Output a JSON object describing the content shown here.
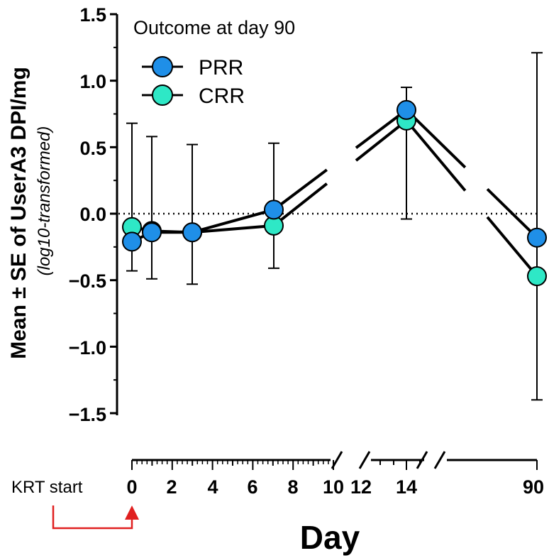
{
  "chart_data": {
    "type": "line",
    "title": "Outcome at day 90",
    "ylabel": "Mean ± SE of UserA3 DPI/mg",
    "ylabel_sub": "(log10-transformed)",
    "xlabel": "Day",
    "ylim": [
      -1.5,
      1.5
    ],
    "yticks": [
      1.5,
      1.0,
      0.5,
      0.0,
      -0.5,
      -1.0,
      -1.5
    ],
    "ytick_labels": [
      "1.5",
      "1.0",
      "0.5",
      "0.0",
      "−0.5",
      "−1.0",
      "−1.5"
    ],
    "xtick_labels": [
      "0",
      "2",
      "4",
      "6",
      "8",
      "10",
      "12",
      "14",
      "90"
    ],
    "x": [
      0,
      1,
      3,
      7,
      14,
      90
    ],
    "reference_line": 0.0,
    "annotation": "KRT start",
    "series": [
      {
        "name": "PRR",
        "color": "#1f8fe8",
        "values": [
          -0.21,
          -0.14,
          -0.14,
          0.03,
          0.78,
          -0.18
        ],
        "err_upper": [
          0.68,
          0.58,
          0.52,
          0.53,
          0.95,
          1.21
        ],
        "err_lower": [
          -0.43,
          -0.49,
          -0.53,
          -0.41,
          -0.04,
          -1.4
        ]
      },
      {
        "name": "CRR",
        "color": "#2ee8c6",
        "values": [
          -0.1,
          -0.13,
          -0.14,
          -0.09,
          0.7,
          -0.47
        ],
        "err_upper": [],
        "err_lower": []
      }
    ]
  }
}
